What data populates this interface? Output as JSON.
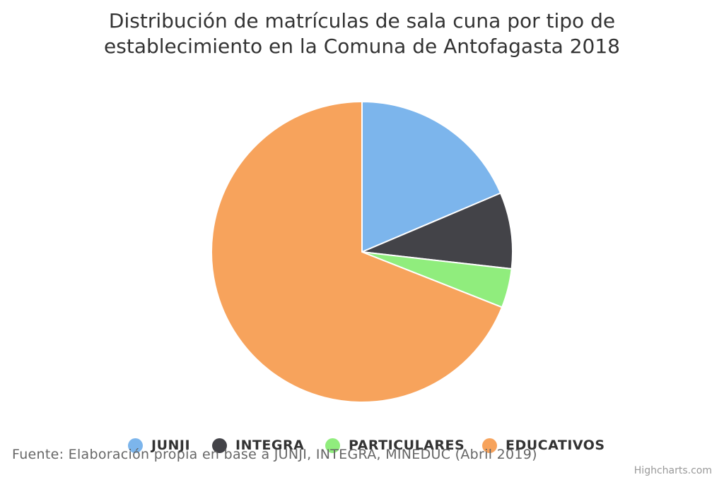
{
  "chart_data": {
    "type": "pie",
    "title_line1": "Distribución de matrículas de sala cuna por tipo de",
    "title_line2": "establecimiento en la Comuna de Antofagasta 2018",
    "categories": [
      "JUNJI",
      "INTEGRA",
      "PARTICULARES",
      "EDUCATIVOS"
    ],
    "values": [
      18.6,
      8.2,
      4.2,
      69.0
    ],
    "colors": [
      "#7cb5ec",
      "#434348",
      "#90ed7d",
      "#f7a35c"
    ],
    "legend_placement": "bottom-center"
  },
  "source": "Fuente: Elaboración propia en base a JUNJI, INTEGRA, MINEDUC (Abril 2019)",
  "credits": "Highcharts.com"
}
